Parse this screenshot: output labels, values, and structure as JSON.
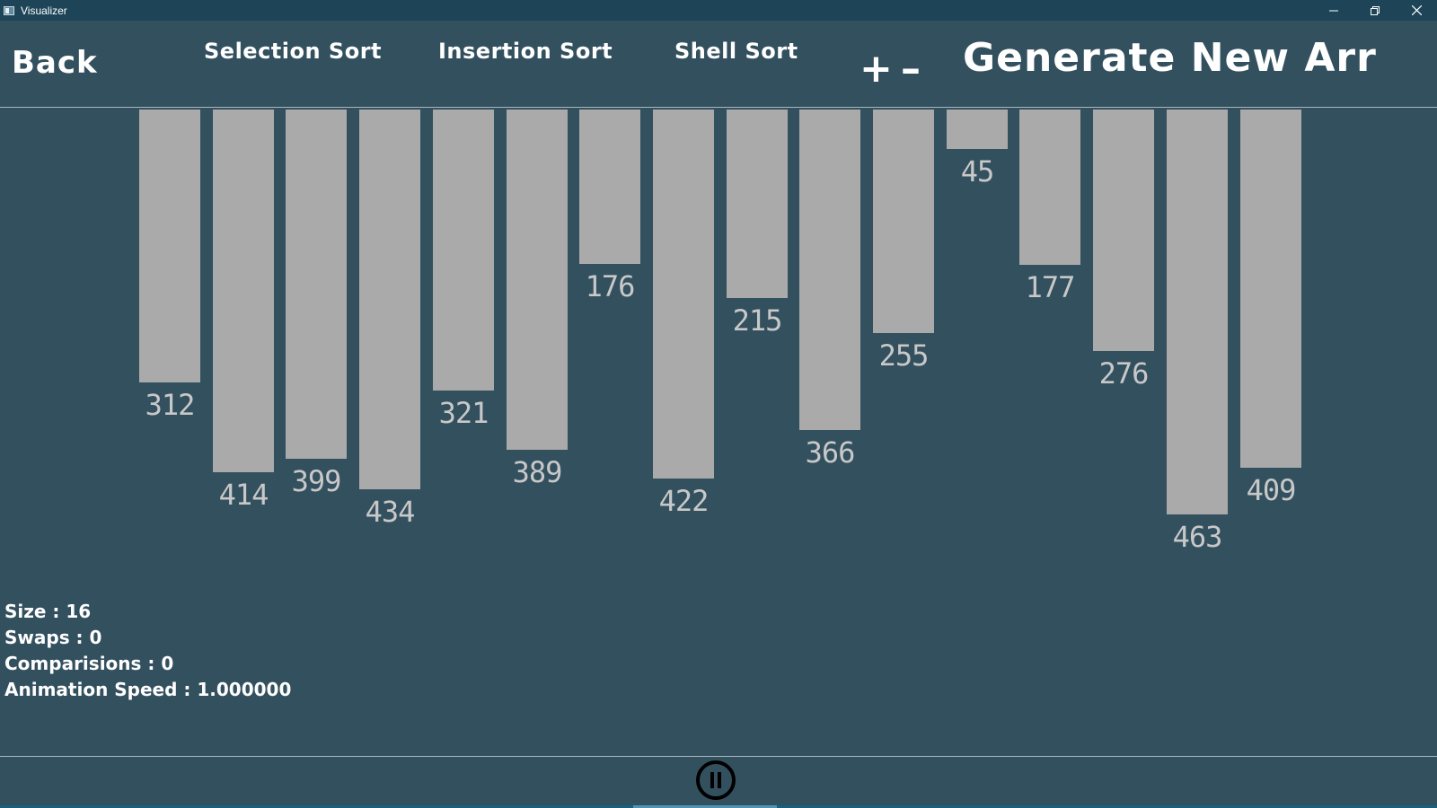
{
  "window": {
    "title": "Visualizer",
    "icon": "app-window-icon",
    "controls": [
      "minimize-icon",
      "restore-icon",
      "close-icon"
    ]
  },
  "toolbar": {
    "back_label": "Back",
    "sort_buttons": [
      {
        "label": "Selection Sort"
      },
      {
        "label": "Insertion Sort"
      },
      {
        "label": "Shell Sort"
      }
    ],
    "plus_label": "+",
    "minus_label": "–",
    "generate_label": "Generate New Arr"
  },
  "bars": {
    "values": [
      312,
      414,
      399,
      434,
      321,
      389,
      176,
      422,
      215,
      366,
      255,
      45,
      177,
      276,
      463,
      409
    ],
    "labels": [
      "312",
      "414",
      "399",
      "434",
      "321",
      "389",
      "176",
      "422",
      "215",
      "366",
      "255",
      "45",
      "177",
      "276",
      "463",
      "409"
    ],
    "bar_color": "#aaaaaa"
  },
  "stats": {
    "size": "Size : 16",
    "swaps": "Swaps : 0",
    "comparisons": "Comparisions : 0",
    "speed": "Animation Speed : 1.000000"
  },
  "controls": {
    "pause_icon": "pause-icon"
  },
  "colors": {
    "background": "#33505f",
    "titlebar": "#1d4557",
    "text": "#ffffff",
    "bar": "#aaaaaa",
    "bar_label": "#c8c8c8"
  }
}
